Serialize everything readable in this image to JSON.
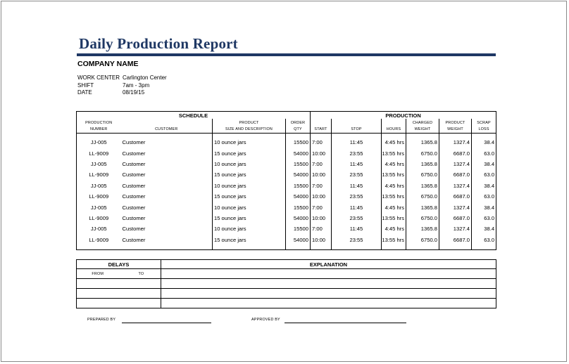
{
  "report": {
    "title": "Daily Production Report",
    "company": "COMPANY NAME",
    "info": [
      {
        "label": "WORK CENTER",
        "value": "Carlington Center"
      },
      {
        "label": "SHIFT",
        "value": "7am - 3pm"
      },
      {
        "label": "DATE",
        "value": "08/19/15"
      }
    ]
  },
  "table": {
    "group_schedule": "SCHEDULE",
    "group_production": "PRODUCTION",
    "headers_top": [
      "PRODUCTION",
      "",
      "PRODUCT",
      "ORDER",
      "",
      "",
      "",
      "CHARGED",
      "PRODUCT",
      "SCRAP"
    ],
    "headers_bottom": [
      "NUMBER",
      "CUSTOMER",
      "SIZE AND DESCRIPTION",
      "QTY",
      "START",
      "STOP",
      "HOURS",
      "WEIGHT",
      "WEIGHT",
      "LOSS"
    ],
    "rows": [
      [
        "JJ-005",
        "Customer",
        "10 ounce jars",
        "15500",
        "7:00",
        "11:45",
        "4:45 hrs",
        "1365.8",
        "1327.4",
        "38.4"
      ],
      [
        "LL-9009",
        "Customer",
        "15 ounce jars",
        "54000",
        "10:00",
        "23:55",
        "13:55 hrs",
        "6750.0",
        "6687.0",
        "63.0"
      ],
      [
        "JJ-005",
        "Customer",
        "10 ounce jars",
        "15500",
        "7:00",
        "11:45",
        "4:45 hrs",
        "1365.8",
        "1327.4",
        "38.4"
      ],
      [
        "LL-9009",
        "Customer",
        "15 ounce jars",
        "54000",
        "10:00",
        "23:55",
        "13:55 hrs",
        "6750.0",
        "6687.0",
        "63.0"
      ],
      [
        "JJ-005",
        "Customer",
        "10 ounce jars",
        "15500",
        "7:00",
        "11:45",
        "4:45 hrs",
        "1365.8",
        "1327.4",
        "38.4"
      ],
      [
        "LL-9009",
        "Customer",
        "15 ounce jars",
        "54000",
        "10:00",
        "23:55",
        "13:55 hrs",
        "6750.0",
        "6687.0",
        "63.0"
      ],
      [
        "JJ-005",
        "Customer",
        "10 ounce jars",
        "15500",
        "7:00",
        "11:45",
        "4:45 hrs",
        "1365.8",
        "1327.4",
        "38.4"
      ],
      [
        "LL-9009",
        "Customer",
        "15 ounce jars",
        "54000",
        "10:00",
        "23:55",
        "13:55 hrs",
        "6750.0",
        "6687.0",
        "63.0"
      ],
      [
        "JJ-005",
        "Customer",
        "10 ounce jars",
        "15500",
        "7:00",
        "11:45",
        "4:45 hrs",
        "1365.8",
        "1327.4",
        "38.4"
      ],
      [
        "LL-9009",
        "Customer",
        "15 ounce jars",
        "54000",
        "10:00",
        "23:55",
        "13:55 hrs",
        "6750.0",
        "6687.0",
        "63.0"
      ]
    ]
  },
  "delays": {
    "header_delays": "DELAYS",
    "header_explanation": "EXPLANATION",
    "from_label": "FROM",
    "to_label": "TO"
  },
  "signatures": {
    "prepared_by": "PREPARED BY",
    "approved_by": "APPROVED BY"
  }
}
